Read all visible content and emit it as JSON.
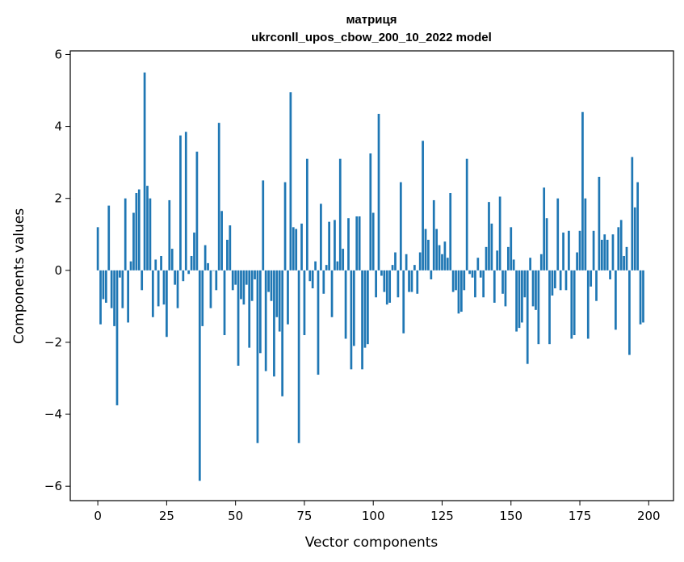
{
  "chart_data": {
    "type": "bar",
    "title": "матриця",
    "subtitle": "ukrconll_upos_cbow_200_10_2022 model",
    "xlabel": "Vector components",
    "ylabel": "Components values",
    "xlim": [
      -10,
      209
    ],
    "ylim": [
      -6.4,
      6.1
    ],
    "x_ticks": [
      0,
      25,
      50,
      75,
      100,
      125,
      150,
      175,
      200
    ],
    "x_tick_labels": [
      "0",
      "25",
      "50",
      "75",
      "100",
      "125",
      "150",
      "175",
      "200"
    ],
    "y_ticks": [
      -6,
      -4,
      -2,
      0,
      2,
      4,
      6
    ],
    "y_tick_labels": [
      "−6",
      "−4",
      "−2",
      "0",
      "2",
      "4",
      "6"
    ],
    "grid": false,
    "bar_color": "#1f77b4",
    "values": [
      1.2,
      -1.5,
      -0.8,
      -0.9,
      1.8,
      -1.05,
      -1.55,
      -3.75,
      -0.2,
      -1.05,
      2.0,
      -1.45,
      0.25,
      1.6,
      2.15,
      2.25,
      -0.55,
      5.5,
      2.35,
      2.0,
      -1.3,
      0.3,
      -1.0,
      0.4,
      -0.95,
      -1.85,
      1.95,
      0.6,
      -0.4,
      -1.05,
      3.75,
      -0.3,
      3.85,
      -0.1,
      0.4,
      1.05,
      3.3,
      -5.85,
      -1.55,
      0.7,
      0.2,
      -1.05,
      0.0,
      -0.55,
      4.1,
      1.65,
      -1.8,
      0.85,
      1.25,
      -0.55,
      -0.4,
      -2.65,
      -0.8,
      -0.95,
      -0.4,
      -2.15,
      -0.85,
      -0.25,
      -4.8,
      -2.3,
      2.5,
      -2.8,
      -0.6,
      -0.85,
      -2.95,
      -1.3,
      -1.7,
      -3.5,
      2.45,
      -1.5,
      4.95,
      1.2,
      1.15,
      -4.8,
      1.3,
      -1.8,
      3.1,
      -0.3,
      -0.5,
      0.25,
      -2.9,
      1.85,
      -0.65,
      0.15,
      1.35,
      -1.3,
      1.4,
      0.25,
      3.1,
      0.6,
      -1.9,
      1.45,
      -2.75,
      -2.1,
      1.5,
      1.5,
      -2.75,
      -2.15,
      -2.05,
      3.25,
      1.6,
      -0.75,
      4.35,
      -0.15,
      -0.6,
      -0.95,
      -0.9,
      0.15,
      0.5,
      -0.75,
      2.45,
      -1.75,
      0.45,
      -0.6,
      -0.6,
      0.15,
      -0.65,
      0.5,
      3.6,
      1.15,
      0.85,
      -0.25,
      1.95,
      1.15,
      0.7,
      0.45,
      0.8,
      0.35,
      2.15,
      -0.6,
      -0.55,
      -1.2,
      -1.15,
      -0.55,
      3.1,
      -0.1,
      -0.2,
      -0.75,
      0.35,
      -0.2,
      -0.75,
      0.65,
      1.9,
      1.3,
      -0.9,
      0.55,
      2.05,
      -0.65,
      -1.0,
      0.65,
      1.2,
      0.3,
      -1.7,
      -1.6,
      -1.45,
      -0.75,
      -2.6,
      0.35,
      -1.0,
      -1.1,
      -2.05,
      0.45,
      2.3,
      1.45,
      -2.05,
      -0.7,
      -0.5,
      2.0,
      -0.55,
      1.05,
      -0.55,
      1.1,
      -1.9,
      -1.8,
      0.5,
      1.1,
      4.4,
      2.0,
      -1.9,
      -0.45,
      1.1,
      -0.85,
      2.6,
      0.85,
      1.0,
      0.85,
      -0.25,
      1.0,
      -1.65,
      1.2,
      1.4,
      0.4,
      0.65,
      -2.35,
      3.15,
      1.75,
      2.45,
      -1.5,
      -1.45
    ]
  }
}
